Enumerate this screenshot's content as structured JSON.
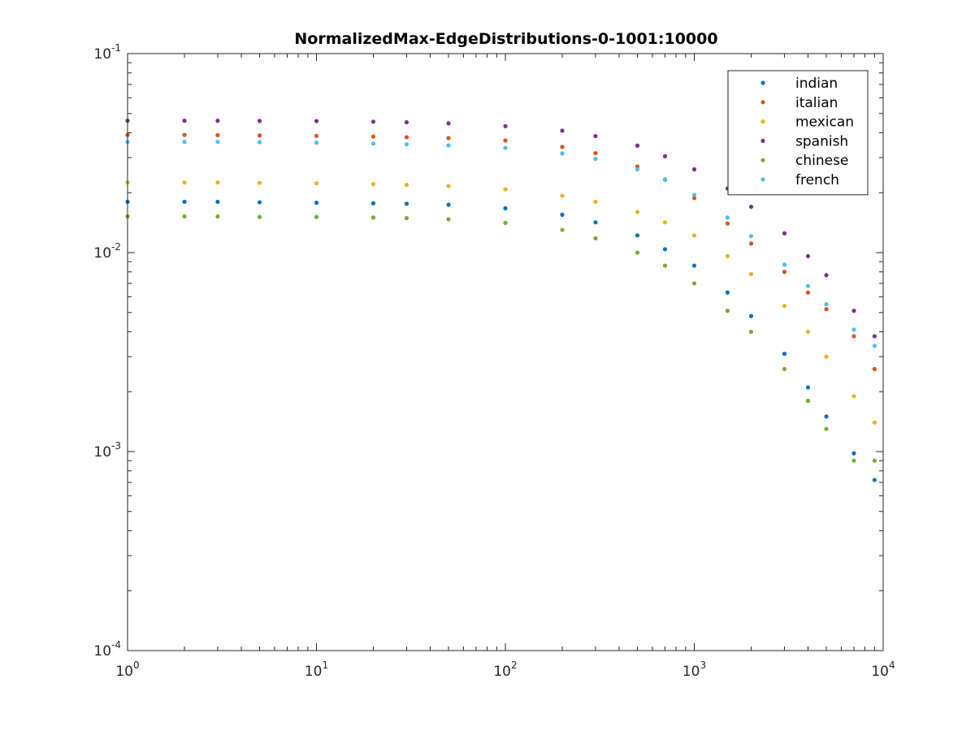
{
  "chart_data": {
    "type": "scatter",
    "title": "NormalizedMax-EdgeDistributions-0-1001:10000",
    "xlabel": "",
    "ylabel": "",
    "x_scale": "log",
    "y_scale": "log",
    "xlim": [
      1,
      10000
    ],
    "ylim": [
      0.0001,
      0.1
    ],
    "grid": false,
    "legend_position": "top-right",
    "x_ticks": [
      {
        "base": "10",
        "exp": "0",
        "value": 1
      },
      {
        "base": "10",
        "exp": "1",
        "value": 10
      },
      {
        "base": "10",
        "exp": "2",
        "value": 100
      },
      {
        "base": "10",
        "exp": "3",
        "value": 1000
      },
      {
        "base": "10",
        "exp": "4",
        "value": 10000
      }
    ],
    "y_ticks": [
      {
        "base": "10",
        "exp": "-4",
        "value": 0.0001
      },
      {
        "base": "10",
        "exp": "-3",
        "value": 0.001
      },
      {
        "base": "10",
        "exp": "-2",
        "value": 0.01
      },
      {
        "base": "10",
        "exp": "-1",
        "value": 0.1
      }
    ],
    "series": [
      {
        "name": "indian",
        "color": "#0072BD",
        "x": [
          1,
          2,
          3,
          5,
          10,
          20,
          30,
          50,
          100,
          200,
          300,
          500,
          700,
          1000,
          1500,
          2000,
          3000,
          4000,
          5000,
          7000,
          9000
        ],
        "y": [
          0.018,
          0.018,
          0.018,
          0.0179,
          0.0178,
          0.0177,
          0.0176,
          0.0174,
          0.0167,
          0.0155,
          0.0142,
          0.0122,
          0.0104,
          0.0086,
          0.0063,
          0.0048,
          0.0031,
          0.0021,
          0.0015,
          0.00098,
          0.00072
        ]
      },
      {
        "name": "italian",
        "color": "#D95319",
        "x": [
          1,
          2,
          3,
          5,
          10,
          20,
          30,
          50,
          100,
          200,
          300,
          500,
          700,
          1000,
          1500,
          2000,
          3000,
          4000,
          5000,
          7000,
          9000
        ],
        "y": [
          0.039,
          0.039,
          0.0389,
          0.0388,
          0.0386,
          0.0383,
          0.038,
          0.0376,
          0.0366,
          0.034,
          0.0316,
          0.0271,
          0.0233,
          0.0188,
          0.014,
          0.0111,
          0.008,
          0.0063,
          0.0052,
          0.0038,
          0.0026
        ]
      },
      {
        "name": "mexican",
        "color": "#EDB120",
        "x": [
          1,
          2,
          3,
          5,
          10,
          20,
          30,
          50,
          100,
          200,
          300,
          500,
          700,
          1000,
          1500,
          2000,
          3000,
          4000,
          5000,
          7000,
          9000
        ],
        "y": [
          0.0225,
          0.0225,
          0.0225,
          0.0224,
          0.0223,
          0.0221,
          0.0219,
          0.0216,
          0.0208,
          0.0193,
          0.018,
          0.016,
          0.0142,
          0.0122,
          0.0096,
          0.0078,
          0.0054,
          0.004,
          0.003,
          0.0019,
          0.0014
        ]
      },
      {
        "name": "spanish",
        "color": "#7E2F8E",
        "x": [
          1,
          2,
          3,
          5,
          10,
          20,
          30,
          50,
          100,
          200,
          300,
          500,
          700,
          1000,
          1500,
          2000,
          3000,
          4000,
          5000,
          7000,
          9000
        ],
        "y": [
          0.046,
          0.046,
          0.046,
          0.0459,
          0.0458,
          0.0455,
          0.0452,
          0.0446,
          0.0432,
          0.041,
          0.0385,
          0.0345,
          0.0305,
          0.0262,
          0.021,
          0.017,
          0.0125,
          0.0096,
          0.0077,
          0.0051,
          0.0038
        ]
      },
      {
        "name": "chinese",
        "color": "#77AC30",
        "x": [
          1,
          2,
          3,
          5,
          10,
          20,
          30,
          50,
          100,
          200,
          300,
          500,
          700,
          1000,
          1500,
          2000,
          3000,
          4000,
          5000,
          7000,
          9000
        ],
        "y": [
          0.0152,
          0.0152,
          0.0152,
          0.0151,
          0.0151,
          0.015,
          0.0149,
          0.0147,
          0.0141,
          0.013,
          0.0118,
          0.01,
          0.0086,
          0.007,
          0.0051,
          0.004,
          0.0026,
          0.0018,
          0.0013,
          0.0009,
          0.0009
        ]
      },
      {
        "name": "french",
        "color": "#4DBEEE",
        "x": [
          1,
          2,
          3,
          5,
          10,
          20,
          30,
          50,
          100,
          200,
          300,
          500,
          700,
          1000,
          1500,
          2000,
          3000,
          4000,
          5000,
          7000,
          9000
        ],
        "y": [
          0.036,
          0.036,
          0.036,
          0.0359,
          0.0357,
          0.0353,
          0.035,
          0.0346,
          0.0336,
          0.0315,
          0.0296,
          0.0262,
          0.0232,
          0.0195,
          0.015,
          0.0121,
          0.0087,
          0.0068,
          0.0055,
          0.0041,
          0.0034
        ]
      }
    ]
  }
}
